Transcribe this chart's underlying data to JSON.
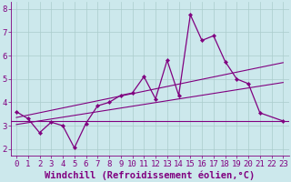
{
  "xlabel": "Windchill (Refroidissement éolien,°C)",
  "x_values": [
    0,
    1,
    2,
    3,
    4,
    5,
    6,
    7,
    8,
    9,
    10,
    11,
    12,
    13,
    14,
    15,
    16,
    17,
    18,
    19,
    20,
    21,
    22,
    23
  ],
  "line1_y": [
    3.6,
    3.3,
    2.7,
    3.15,
    3.0,
    2.05,
    3.1,
    3.85,
    4.0,
    4.3,
    4.4,
    5.1,
    4.15,
    5.8,
    4.3,
    7.75,
    6.65,
    6.85,
    5.75,
    5.0,
    4.8,
    3.55,
    null,
    3.2
  ],
  "horiz_y": 3.2,
  "trend1_x": [
    0,
    23
  ],
  "trend1_y": [
    3.35,
    5.7
  ],
  "trend2_x": [
    0,
    23
  ],
  "trend2_y": [
    3.05,
    4.85
  ],
  "ylim": [
    1.7,
    8.3
  ],
  "xlim": [
    -0.5,
    23.5
  ],
  "yticks": [
    2,
    3,
    4,
    5,
    6,
    7,
    8
  ],
  "xticks": [
    0,
    1,
    2,
    3,
    4,
    5,
    6,
    7,
    8,
    9,
    10,
    11,
    12,
    13,
    14,
    15,
    16,
    17,
    18,
    19,
    20,
    21,
    22,
    23
  ],
  "bg_color": "#cce8ec",
  "line_color": "#800080",
  "grid_color": "#aacccc",
  "tick_fontsize": 6.5,
  "xlabel_fontsize": 7.5
}
